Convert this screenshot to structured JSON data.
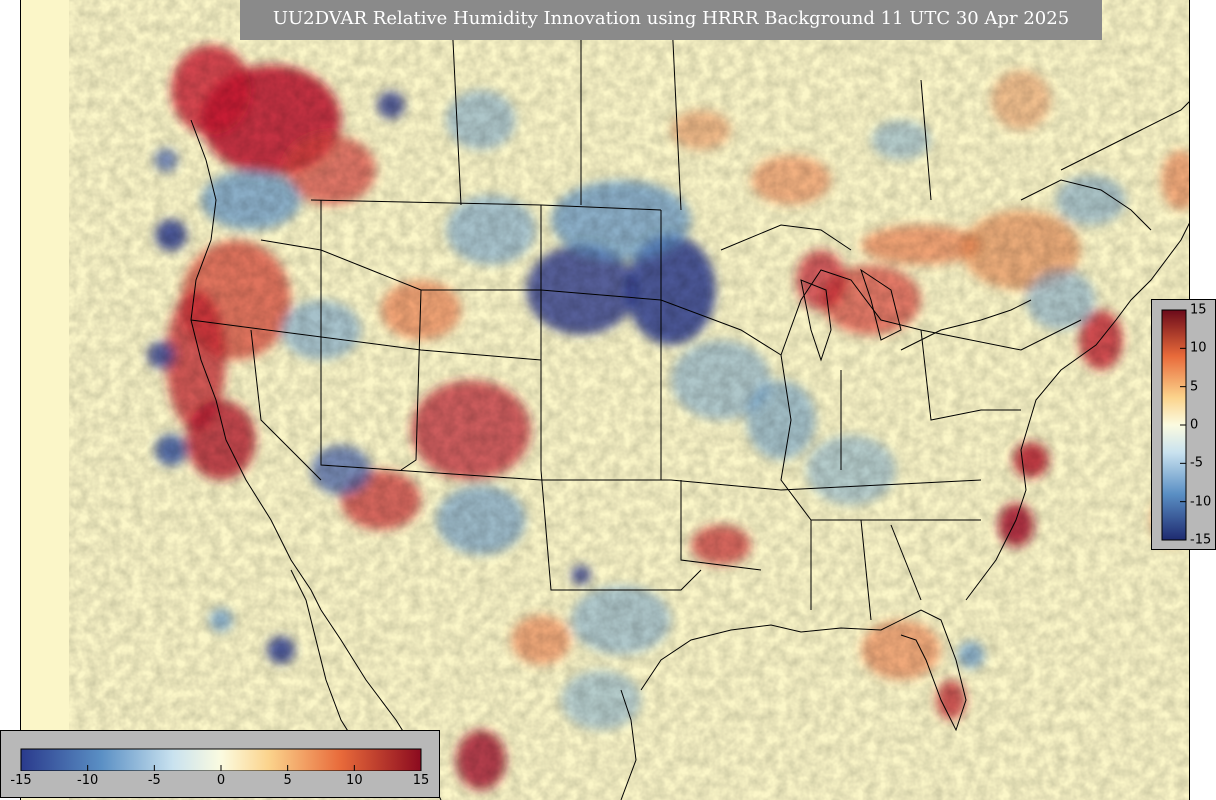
{
  "map": {
    "title": "UU2DVAR Relative Humidity Innovation using HRRR Background 11 UTC 30 Apr 2025",
    "field": "relative humidity innovation",
    "projection_region": "CONUS",
    "colormap": "diverging red-yellow-blue",
    "colors": {
      "background_land_neutral": "#fbf6c8",
      "positive_max": "#8b0a1f",
      "positive_mid": "#e86a3a",
      "positive_low": "#fbd38c",
      "negative_low": "#c9e2ef",
      "negative_mid": "#5a8fc4",
      "negative_max": "#2a3a8c",
      "panel_bg": "#b8b8b8",
      "title_bg": "#8a8a8a"
    }
  },
  "colorbar_bottom": {
    "ticks": [
      "-15",
      "-10",
      "-5",
      "0",
      "5",
      "10",
      "15"
    ],
    "range": [
      -15,
      15
    ]
  },
  "colorbar_right": {
    "ticks": [
      "15",
      "10",
      "5",
      "0",
      "-5",
      "-10",
      "-15"
    ],
    "range": [
      -15,
      15
    ]
  }
}
